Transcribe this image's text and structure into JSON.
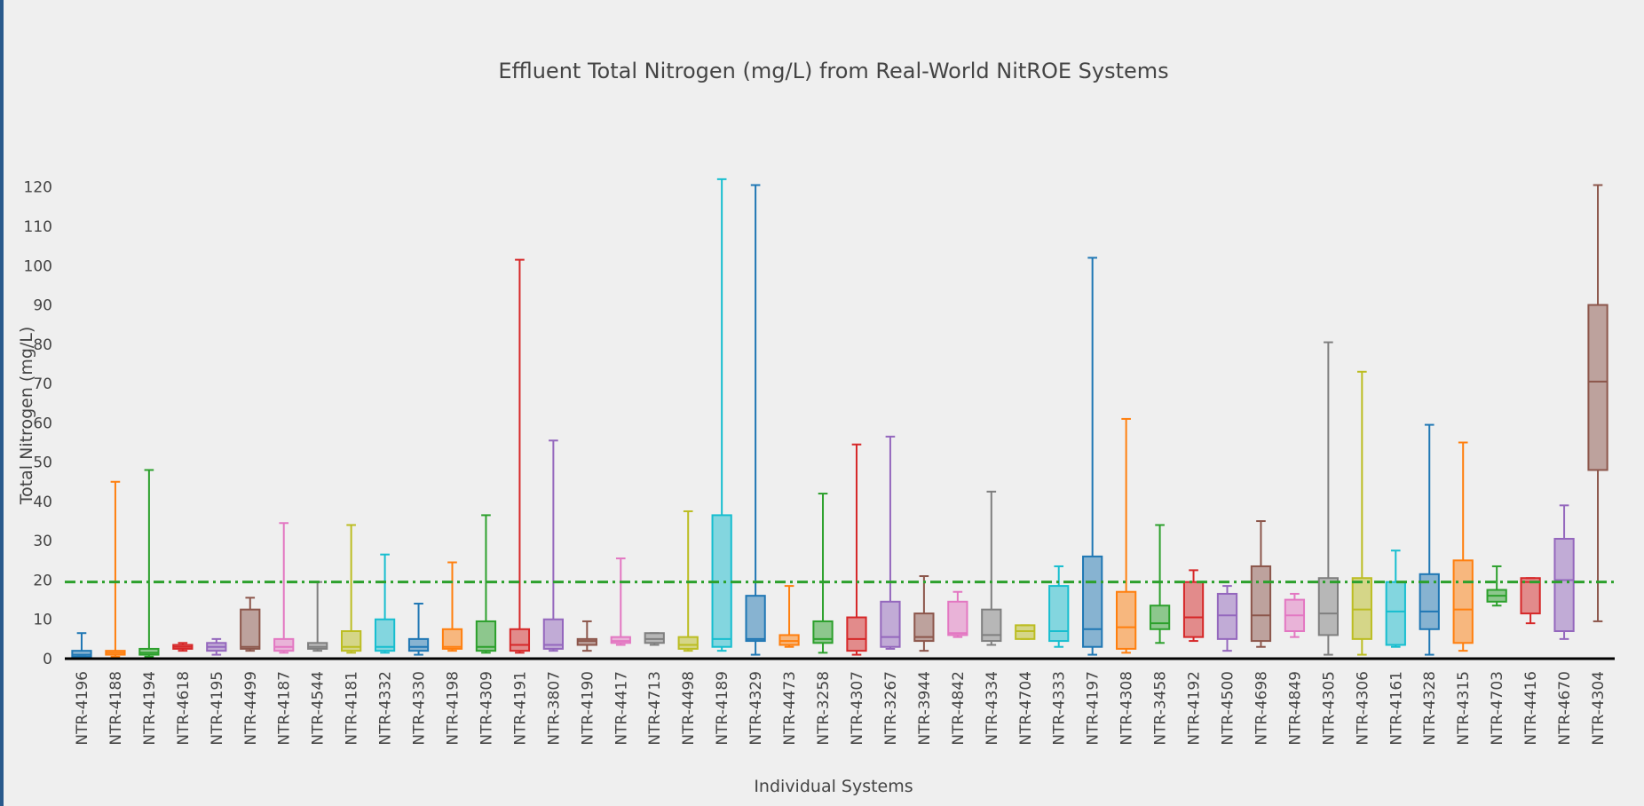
{
  "chart_data": {
    "type": "box",
    "title": "Effluent Total Nitrogen (mg/L) from Real-World NitROE Systems",
    "x_label": "Individual Systems",
    "y_label": "Total Nitrogen (mg/L)",
    "ylim": [
      0,
      124
    ],
    "yticks": [
      0,
      10,
      20,
      30,
      40,
      50,
      60,
      70,
      80,
      90,
      100,
      110,
      120
    ],
    "grid": false,
    "reference_line": {
      "value": 19.5,
      "color": "#2ca02c"
    },
    "boxes": [
      {
        "name": "NTR-4196",
        "color": "#1f77b4",
        "min": 0.5,
        "q1": 0.5,
        "median": 1,
        "q3": 2,
        "max": 6.5
      },
      {
        "name": "NTR-4188",
        "color": "#ff7f0e",
        "min": 0.5,
        "q1": 1,
        "median": 1.5,
        "q3": 2,
        "max": 45
      },
      {
        "name": "NTR-4194",
        "color": "#2ca02c",
        "min": 0.5,
        "q1": 1,
        "median": 1.5,
        "q3": 2.5,
        "max": 48
      },
      {
        "name": "NTR-4618",
        "color": "#d62728",
        "min": 2,
        "q1": 2.5,
        "median": 3,
        "q3": 3.5,
        "max": 4
      },
      {
        "name": "NTR-4195",
        "color": "#9467bd",
        "min": 1,
        "q1": 2,
        "median": 3,
        "q3": 4,
        "max": 5
      },
      {
        "name": "NTR-4499",
        "color": "#8c564b",
        "min": 2,
        "q1": 2.5,
        "median": 3,
        "q3": 12.5,
        "max": 15.5
      },
      {
        "name": "NTR-4187",
        "color": "#e377c2",
        "min": 1.5,
        "q1": 2,
        "median": 3,
        "q3": 5,
        "max": 34.5
      },
      {
        "name": "NTR-4544",
        "color": "#7f7f7f",
        "min": 2,
        "q1": 2.5,
        "median": 3,
        "q3": 4,
        "max": 19.5
      },
      {
        "name": "NTR-4181",
        "color": "#bcbd22",
        "min": 1.5,
        "q1": 2,
        "median": 3,
        "q3": 7,
        "max": 34
      },
      {
        "name": "NTR-4332",
        "color": "#17becf",
        "min": 1.5,
        "q1": 2,
        "median": 3,
        "q3": 10,
        "max": 26.5
      },
      {
        "name": "NTR-4330",
        "color": "#1f77b4",
        "min": 1,
        "q1": 2,
        "median": 3,
        "q3": 5,
        "max": 14
      },
      {
        "name": "NTR-4198",
        "color": "#ff7f0e",
        "min": 2,
        "q1": 2.5,
        "median": 3,
        "q3": 7.5,
        "max": 24.5
      },
      {
        "name": "NTR-4309",
        "color": "#2ca02c",
        "min": 1.5,
        "q1": 2,
        "median": 3,
        "q3": 9.5,
        "max": 36.5
      },
      {
        "name": "NTR-4191",
        "color": "#d62728",
        "min": 1.5,
        "q1": 2,
        "median": 3.5,
        "q3": 7.5,
        "max": 101.5
      },
      {
        "name": "NTR-3807",
        "color": "#9467bd",
        "min": 2,
        "q1": 2.5,
        "median": 3.5,
        "q3": 10,
        "max": 55.5
      },
      {
        "name": "NTR-4190",
        "color": "#8c564b",
        "min": 2,
        "q1": 3.5,
        "median": 4.5,
        "q3": 5,
        "max": 9.5
      },
      {
        "name": "NTR-4417",
        "color": "#e377c2",
        "min": 3.5,
        "q1": 4,
        "median": 4.5,
        "q3": 5.5,
        "max": 25.5
      },
      {
        "name": "NTR-4713",
        "color": "#7f7f7f",
        "min": 3.5,
        "q1": 4,
        "median": 5,
        "q3": 6.5,
        "max": 6.5
      },
      {
        "name": "NTR-4498",
        "color": "#bcbd22",
        "min": 2,
        "q1": 2.5,
        "median": 3.5,
        "q3": 5.5,
        "max": 37.5
      },
      {
        "name": "NTR-4189",
        "color": "#17becf",
        "min": 2,
        "q1": 3,
        "median": 5,
        "q3": 36.5,
        "max": 122
      },
      {
        "name": "NTR-4329",
        "color": "#1f77b4",
        "min": 1,
        "q1": 4.5,
        "median": 5,
        "q3": 16,
        "max": 120.5
      },
      {
        "name": "NTR-4473",
        "color": "#ff7f0e",
        "min": 3,
        "q1": 3.5,
        "median": 4.5,
        "q3": 6,
        "max": 18.5
      },
      {
        "name": "NTR-3258",
        "color": "#2ca02c",
        "min": 1.5,
        "q1": 4,
        "median": 5,
        "q3": 9.5,
        "max": 42
      },
      {
        "name": "NTR-4307",
        "color": "#d62728",
        "min": 1,
        "q1": 2,
        "median": 5,
        "q3": 10.5,
        "max": 54.5
      },
      {
        "name": "NTR-3267",
        "color": "#9467bd",
        "min": 2.5,
        "q1": 3,
        "median": 5.5,
        "q3": 14.5,
        "max": 56.5
      },
      {
        "name": "NTR-3944",
        "color": "#8c564b",
        "min": 2,
        "q1": 4.5,
        "median": 5.5,
        "q3": 11.5,
        "max": 21
      },
      {
        "name": "NTR-4842",
        "color": "#e377c2",
        "min": 5.5,
        "q1": 6,
        "median": 6.5,
        "q3": 14.5,
        "max": 17
      },
      {
        "name": "NTR-4334",
        "color": "#7f7f7f",
        "min": 3.5,
        "q1": 4.5,
        "median": 6,
        "q3": 12.5,
        "max": 42.5
      },
      {
        "name": "NTR-4704",
        "color": "#bcbd22",
        "min": 5,
        "q1": 5,
        "median": 7,
        "q3": 8.5,
        "max": 8.5
      },
      {
        "name": "NTR-4333",
        "color": "#17becf",
        "min": 3,
        "q1": 4.5,
        "median": 7,
        "q3": 18.5,
        "max": 23.5
      },
      {
        "name": "NTR-4197",
        "color": "#1f77b4",
        "min": 1,
        "q1": 3,
        "median": 7.5,
        "q3": 26,
        "max": 102
      },
      {
        "name": "NTR-4308",
        "color": "#ff7f0e",
        "min": 1.5,
        "q1": 2.5,
        "median": 8,
        "q3": 17,
        "max": 61
      },
      {
        "name": "NTR-3458",
        "color": "#2ca02c",
        "min": 4,
        "q1": 7.5,
        "median": 9,
        "q3": 13.5,
        "max": 34
      },
      {
        "name": "NTR-4192",
        "color": "#d62728",
        "min": 4.5,
        "q1": 5.5,
        "median": 10.5,
        "q3": 19.5,
        "max": 22.5
      },
      {
        "name": "NTR-4500",
        "color": "#9467bd",
        "min": 2,
        "q1": 5,
        "median": 11,
        "q3": 16.5,
        "max": 18.5
      },
      {
        "name": "NTR-4698",
        "color": "#8c564b",
        "min": 3,
        "q1": 4.5,
        "median": 11,
        "q3": 23.5,
        "max": 35
      },
      {
        "name": "NTR-4849",
        "color": "#e377c2",
        "min": 5.5,
        "q1": 7,
        "median": 11,
        "q3": 15,
        "max": 16.5
      },
      {
        "name": "NTR-4305",
        "color": "#7f7f7f",
        "min": 1,
        "q1": 6,
        "median": 11.5,
        "q3": 20.5,
        "max": 80.5
      },
      {
        "name": "NTR-4306",
        "color": "#bcbd22",
        "min": 1,
        "q1": 5,
        "median": 12.5,
        "q3": 20.5,
        "max": 73
      },
      {
        "name": "NTR-4161",
        "color": "#17becf",
        "min": 3,
        "q1": 3.5,
        "median": 12,
        "q3": 19.5,
        "max": 27.5
      },
      {
        "name": "NTR-4328",
        "color": "#1f77b4",
        "min": 1,
        "q1": 7.5,
        "median": 12,
        "q3": 21.5,
        "max": 59.5
      },
      {
        "name": "NTR-4315",
        "color": "#ff7f0e",
        "min": 2,
        "q1": 4,
        "median": 12.5,
        "q3": 25,
        "max": 55
      },
      {
        "name": "NTR-4703",
        "color": "#2ca02c",
        "min": 13.5,
        "q1": 14.5,
        "median": 16,
        "q3": 17.5,
        "max": 23.5
      },
      {
        "name": "NTR-4416",
        "color": "#d62728",
        "min": 9,
        "q1": 11.5,
        "median": 19.5,
        "q3": 20.5,
        "max": 20.5
      },
      {
        "name": "NTR-4670",
        "color": "#9467bd",
        "min": 5,
        "q1": 7,
        "median": 20,
        "q3": 30.5,
        "max": 39
      },
      {
        "name": "NTR-4304",
        "color": "#8c564b",
        "min": 9.5,
        "q1": 48,
        "median": 70.5,
        "q3": 90,
        "max": 120.5
      }
    ]
  }
}
